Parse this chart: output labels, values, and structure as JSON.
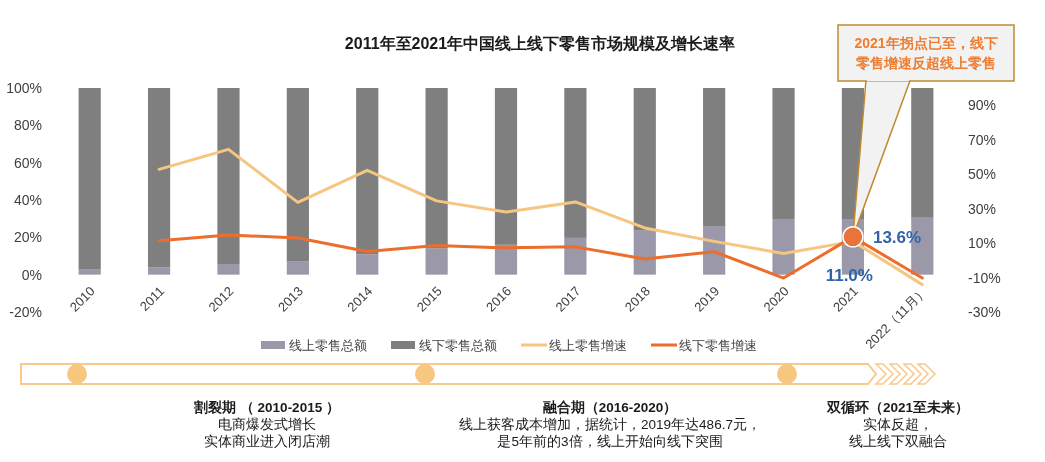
{
  "chart_data": {
    "type": "bar",
    "title": "2011年至2021年中国线上线下零售市场规模及增长速率",
    "categories": [
      "2010",
      "2011",
      "2012",
      "2013",
      "2014",
      "2015",
      "2016",
      "2017",
      "2018",
      "2019",
      "2020",
      "2021",
      "2022（11月）"
    ],
    "stacked": true,
    "legend": "bottom",
    "ylim": [
      -20,
      100
    ],
    "yticks": [
      {
        "value": -20,
        "label": "-20%"
      },
      {
        "value": 0,
        "label": "0%"
      },
      {
        "value": 20,
        "label": "20%"
      },
      {
        "value": 40,
        "label": "40%"
      },
      {
        "value": 60,
        "label": "60%"
      },
      {
        "value": 80,
        "label": "80%"
      },
      {
        "value": 100,
        "label": "100%"
      }
    ],
    "y2lim": [
      -30,
      100
    ],
    "y2ticks": [
      {
        "value": -30,
        "label": "-30%"
      },
      {
        "value": -10,
        "label": "-10%"
      },
      {
        "value": 10,
        "label": "10%"
      },
      {
        "value": 30,
        "label": "30%"
      },
      {
        "value": 50,
        "label": "50%"
      },
      {
        "value": 70,
        "label": "70%"
      },
      {
        "value": 90,
        "label": "90%"
      }
    ],
    "series": [
      {
        "name": "线上零售总额",
        "color": "#9b98a9",
        "values": [
          3.0,
          3.8,
          5.7,
          7.0,
          10.9,
          14.0,
          16.0,
          19.7,
          23.6,
          25.7,
          29.8,
          29.8,
          30.5
        ]
      },
      {
        "name": "线下零售总额",
        "color": "#7f7f7f",
        "values": [
          97.0,
          96.2,
          94.3,
          93.0,
          89.1,
          86.0,
          84.0,
          80.3,
          76.4,
          74.3,
          70.2,
          70.2,
          69.5
        ]
      },
      {
        "name": "线上零售增速",
        "type": "line",
        "axis": "y2",
        "color": "#f6c680",
        "values": [
          null,
          52.8,
          64.4,
          33.6,
          52.2,
          34.5,
          28.0,
          33.9,
          18.8,
          11.0,
          4.0,
          11.0,
          -14.1
        ],
        "value_labels": [
          null,
          null,
          null,
          null,
          null,
          null,
          null,
          null,
          null,
          null,
          null,
          "11.0%",
          null
        ]
      },
      {
        "name": "线下零售增速",
        "type": "line",
        "axis": "y2",
        "color": "#ed6d2c",
        "values": [
          null,
          11.4,
          14.7,
          13.0,
          5.1,
          8.6,
          7.2,
          7.8,
          0.8,
          5.0,
          -10.3,
          13.6,
          -10.3
        ],
        "value_labels": [
          null,
          null,
          null,
          null,
          null,
          null,
          null,
          null,
          null,
          null,
          null,
          "13.6%",
          null
        ]
      }
    ],
    "annotations": [
      "2021年拐点已至，线下零售增速反超线上零售",
      "割裂期 （ 2010-2015 ）",
      "电商爆发式增长",
      "实体商业进入闭店潮",
      "融合期（2016-2020）",
      "线上获客成本增加，据统计，2019年达486.7元，",
      "是5年前的3倍，线上开始向线下突围",
      "双循环（2021至未来）",
      "实体反超，",
      "线上线下双融合"
    ]
  }
}
